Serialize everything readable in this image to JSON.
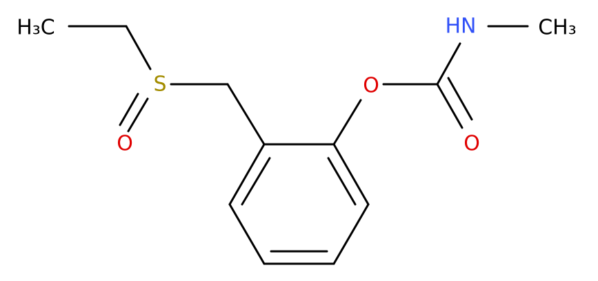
{
  "nodes": [
    {
      "label": "H₃C"
    },
    {
      "label": "S"
    },
    {
      "label": "O"
    },
    {
      "label": "O"
    },
    {
      "label": "O"
    },
    {
      "label": "HN"
    },
    {
      "label": "CH₃"
    }
  ]
}
